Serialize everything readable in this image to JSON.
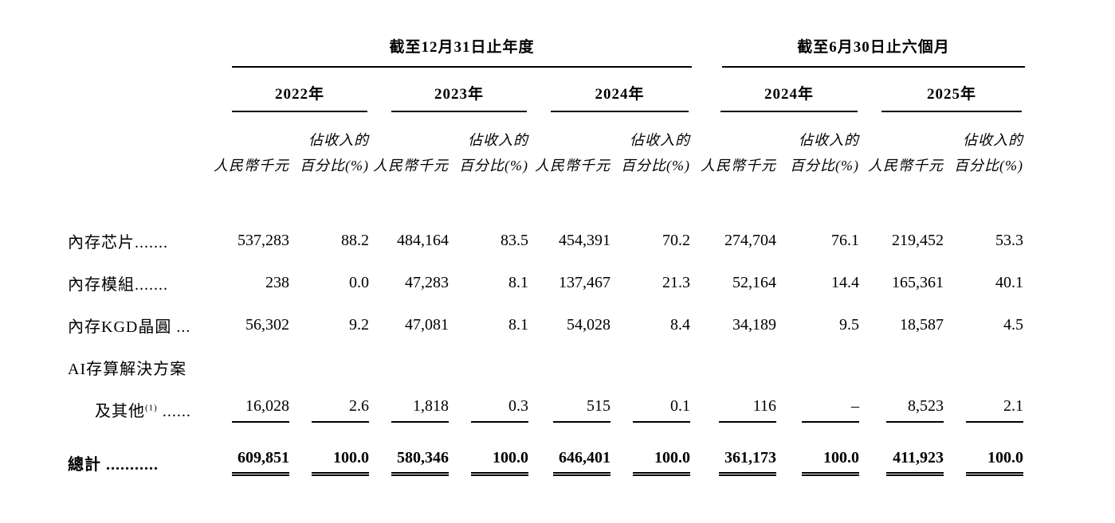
{
  "page": {
    "background": "#ffffff",
    "text_color": "#000000"
  },
  "table": {
    "period_groups": [
      {
        "label": "截至12月31日止年度",
        "years": [
          "2022年",
          "2023年",
          "2024年"
        ]
      },
      {
        "label": "截至6月30日止六個月",
        "years": [
          "2024年",
          "2025年"
        ]
      }
    ],
    "subheaders": {
      "amount": "人民幣千元",
      "pct_line1": "佔收入的",
      "pct_line2": "百分比(%)"
    },
    "rows": [
      {
        "label": "內存芯片.......",
        "indent": false,
        "bold": false,
        "total": false,
        "rule": "none",
        "values": [
          "537,283",
          "88.2",
          "484,164",
          "83.5",
          "454,391",
          "70.2",
          "274,704",
          "76.1",
          "219,452",
          "53.3"
        ]
      },
      {
        "label": "內存模組.......",
        "indent": false,
        "bold": false,
        "total": false,
        "rule": "none",
        "values": [
          "238",
          "0.0",
          "47,283",
          "8.1",
          "137,467",
          "21.3",
          "52,164",
          "14.4",
          "165,361",
          "40.1"
        ]
      },
      {
        "label": "內存KGD晶圓 ...",
        "indent": false,
        "bold": false,
        "total": false,
        "rule": "none",
        "values": [
          "56,302",
          "9.2",
          "47,081",
          "8.1",
          "54,028",
          "8.4",
          "34,189",
          "9.5",
          "18,587",
          "4.5"
        ]
      },
      {
        "label": "AI存算解決方案",
        "indent": false,
        "bold": false,
        "total": false,
        "rule": "none",
        "values": []
      },
      {
        "label": "及其他",
        "sup": "(1)",
        "label_after": " ......",
        "indent": true,
        "bold": false,
        "total": false,
        "rule": "single",
        "values": [
          "16,028",
          "2.6",
          "1,818",
          "0.3",
          "515",
          "0.1",
          "116",
          "–",
          "8,523",
          "2.1"
        ]
      },
      {
        "label": "總計 ...........",
        "indent": false,
        "bold": true,
        "total": true,
        "rule": "double",
        "values": [
          "609,851",
          "100.0",
          "580,346",
          "100.0",
          "646,401",
          "100.0",
          "361,173",
          "100.0",
          "411,923",
          "100.0"
        ]
      }
    ]
  }
}
